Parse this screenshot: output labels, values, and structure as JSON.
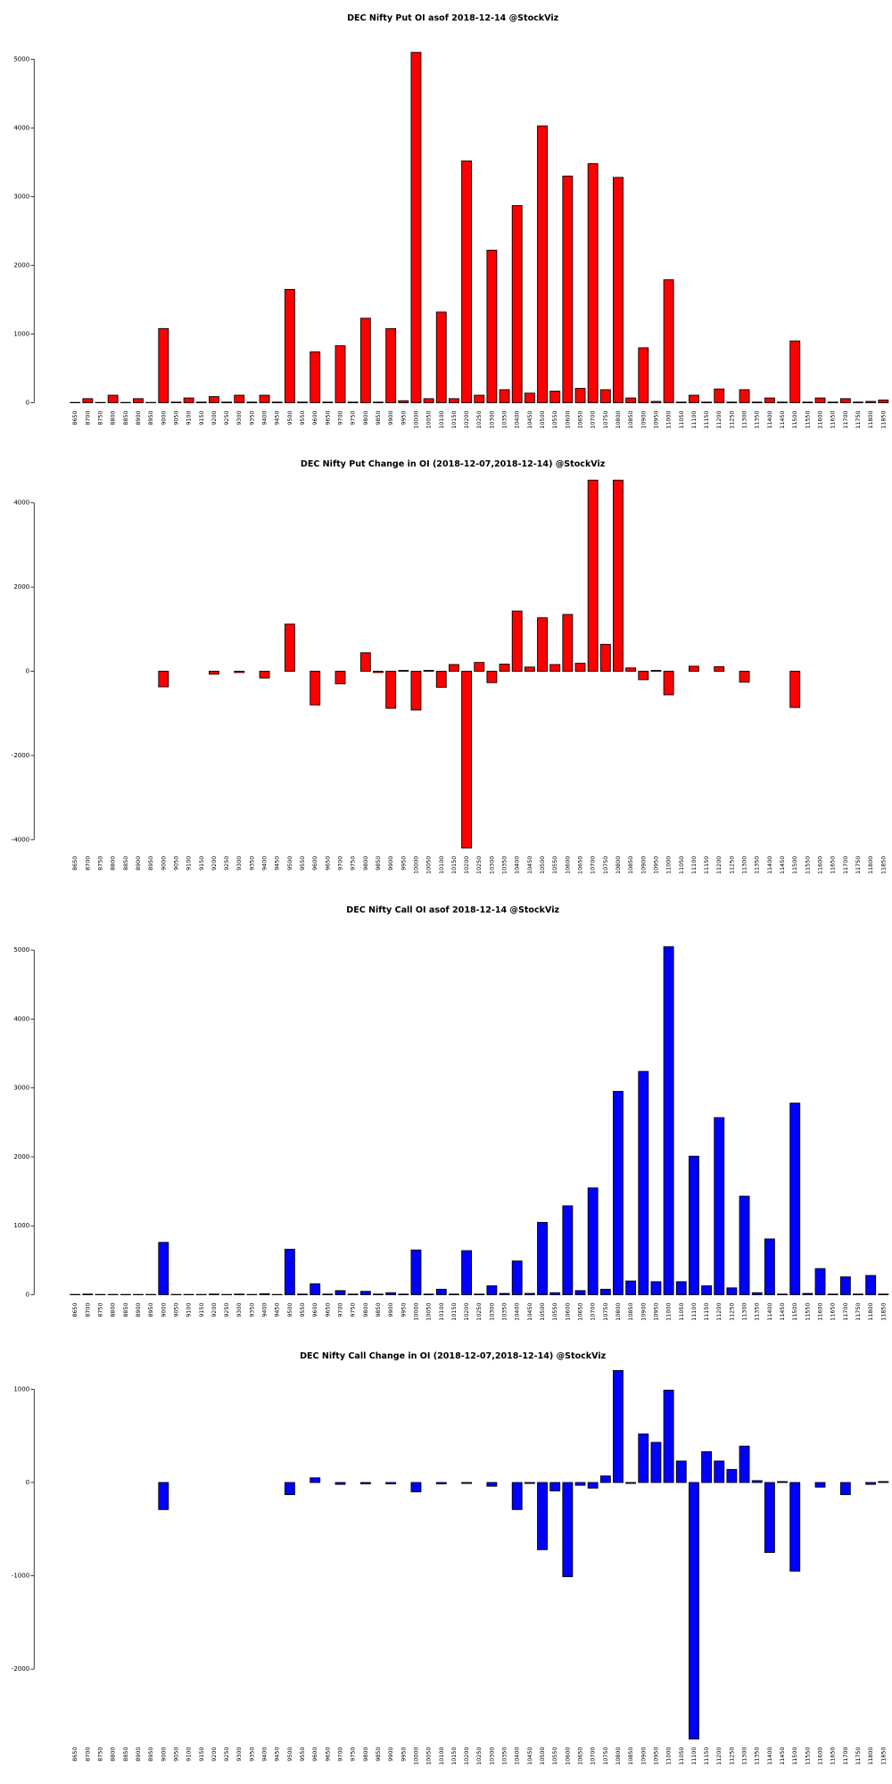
{
  "chart_data": [
    {
      "type": "bar",
      "title": "DEC Nifty Put OI asof 2018-12-14 @StockViz",
      "color": "#ff0000",
      "categories": [
        "8650",
        "8700",
        "8750",
        "8800",
        "8850",
        "8900",
        "8950",
        "9000",
        "9050",
        "9100",
        "9150",
        "9200",
        "9250",
        "9300",
        "9350",
        "9400",
        "9450",
        "9500",
        "9550",
        "9600",
        "9650",
        "9700",
        "9750",
        "9800",
        "9850",
        "9900",
        "9950",
        "10000",
        "10050",
        "10100",
        "10150",
        "10200",
        "10250",
        "10300",
        "10350",
        "10400",
        "10450",
        "10500",
        "10550",
        "10600",
        "10650",
        "10700",
        "10750",
        "10800",
        "10850",
        "10900",
        "10950",
        "11000",
        "11050",
        "11100",
        "11150",
        "11200",
        "11250",
        "11300",
        "11350",
        "11400",
        "11450",
        "11500",
        "11550",
        "11600",
        "11650",
        "11700",
        "11750",
        "11800",
        "11850"
      ],
      "values": [
        5,
        60,
        5,
        110,
        5,
        60,
        5,
        1080,
        10,
        70,
        10,
        90,
        10,
        110,
        10,
        110,
        10,
        1650,
        10,
        740,
        10,
        830,
        10,
        1230,
        10,
        1080,
        30,
        5100,
        60,
        1320,
        60,
        3520,
        110,
        2220,
        190,
        2870,
        140,
        4030,
        170,
        3300,
        210,
        3480,
        190,
        3280,
        70,
        800,
        20,
        1790,
        10,
        110,
        10,
        200,
        10,
        190,
        10,
        70,
        10,
        900,
        10,
        70,
        10,
        60,
        10,
        20,
        40
      ],
      "ylim": [
        0,
        5150
      ],
      "yticks": [
        0,
        1000,
        2000,
        3000,
        4000,
        5000
      ]
    },
    {
      "type": "bar",
      "title": "DEC Nifty Put Change in OI (2018-12-07,2018-12-14) @StockViz",
      "color": "#ff0000",
      "categories": [
        "8650",
        "8700",
        "8750",
        "8800",
        "8850",
        "8900",
        "8950",
        "9000",
        "9050",
        "9100",
        "9150",
        "9200",
        "9250",
        "9300",
        "9350",
        "9400",
        "9450",
        "9500",
        "9550",
        "9600",
        "9650",
        "9700",
        "9750",
        "9800",
        "9850",
        "9900",
        "9950",
        "10000",
        "10050",
        "10100",
        "10150",
        "10200",
        "10250",
        "10300",
        "10350",
        "10400",
        "10450",
        "10500",
        "10550",
        "10600",
        "10650",
        "10700",
        "10750",
        "10800",
        "10850",
        "10900",
        "10950",
        "11000",
        "11050",
        "11100",
        "11150",
        "11200",
        "11250",
        "11300",
        "11350",
        "11400",
        "11450",
        "11500",
        "11550",
        "11600",
        "11650",
        "11700",
        "11750",
        "11800",
        "11850"
      ],
      "values": [
        0,
        0,
        0,
        0,
        0,
        0,
        0,
        -370,
        0,
        0,
        0,
        -70,
        0,
        -30,
        0,
        -160,
        0,
        1120,
        0,
        -800,
        0,
        -300,
        0,
        440,
        -30,
        -880,
        20,
        -920,
        20,
        -380,
        160,
        -4200,
        210,
        -270,
        170,
        1430,
        100,
        1270,
        160,
        1350,
        190,
        4540,
        640,
        4540,
        80,
        -200,
        20,
        -560,
        0,
        120,
        0,
        110,
        0,
        -260,
        0,
        0,
        0,
        -860,
        0,
        0,
        0,
        0,
        0,
        0,
        0
      ],
      "ylim": [
        -4200,
        4540
      ],
      "yticks": [
        -4000,
        -2000,
        0,
        2000,
        4000
      ]
    },
    {
      "type": "bar",
      "title": "DEC Nifty Call OI asof 2018-12-14 @StockViz",
      "color": "#0000ff",
      "categories": [
        "8650",
        "8700",
        "8750",
        "8800",
        "8850",
        "8900",
        "8950",
        "9000",
        "9050",
        "9100",
        "9150",
        "9200",
        "9250",
        "9300",
        "9350",
        "9400",
        "9450",
        "9500",
        "9550",
        "9600",
        "9650",
        "9700",
        "9750",
        "9800",
        "9850",
        "9900",
        "9950",
        "10000",
        "10050",
        "10100",
        "10150",
        "10200",
        "10250",
        "10300",
        "10350",
        "10400",
        "10450",
        "10500",
        "10550",
        "10600",
        "10650",
        "10700",
        "10750",
        "10800",
        "10850",
        "10900",
        "10950",
        "11000",
        "11050",
        "11100",
        "11150",
        "11200",
        "11250",
        "11300",
        "11350",
        "11400",
        "11450",
        "11500",
        "11550",
        "11600",
        "11650",
        "11700",
        "11750",
        "11800",
        "11850"
      ],
      "values": [
        5,
        10,
        5,
        5,
        5,
        5,
        5,
        760,
        5,
        5,
        5,
        10,
        5,
        10,
        5,
        15,
        5,
        660,
        10,
        160,
        10,
        60,
        10,
        50,
        10,
        30,
        10,
        650,
        10,
        80,
        10,
        640,
        10,
        130,
        20,
        490,
        20,
        1050,
        30,
        1290,
        60,
        1550,
        80,
        2950,
        200,
        3240,
        190,
        5050,
        190,
        2010,
        130,
        2570,
        100,
        1430,
        30,
        810,
        10,
        2780,
        20,
        380,
        10,
        260,
        10,
        280,
        10
      ],
      "ylim": [
        0,
        5100
      ],
      "yticks": [
        0,
        1000,
        2000,
        3000,
        4000,
        5000
      ]
    },
    {
      "type": "bar",
      "title": "DEC Nifty Call Change in OI (2018-12-07,2018-12-14) @StockViz",
      "color": "#0000ff",
      "categories": [
        "8650",
        "8700",
        "8750",
        "8800",
        "8850",
        "8900",
        "8950",
        "9000",
        "9050",
        "9100",
        "9150",
        "9200",
        "9250",
        "9300",
        "9350",
        "9400",
        "9450",
        "9500",
        "9550",
        "9600",
        "9650",
        "9700",
        "9750",
        "9800",
        "9850",
        "9900",
        "9950",
        "10000",
        "10050",
        "10100",
        "10150",
        "10200",
        "10250",
        "10300",
        "10350",
        "10400",
        "10450",
        "10500",
        "10550",
        "10600",
        "10650",
        "10700",
        "10750",
        "10800",
        "10850",
        "10900",
        "10950",
        "11000",
        "11050",
        "11100",
        "11150",
        "11200",
        "11250",
        "11300",
        "11350",
        "11400",
        "11450",
        "11500",
        "11550",
        "11600",
        "11650",
        "11700",
        "11750",
        "11800",
        "11850"
      ],
      "values": [
        0,
        0,
        0,
        0,
        0,
        0,
        0,
        -290,
        0,
        0,
        0,
        0,
        0,
        0,
        0,
        0,
        0,
        -130,
        0,
        50,
        0,
        -20,
        0,
        -15,
        0,
        -15,
        0,
        -100,
        0,
        -15,
        0,
        -10,
        0,
        -40,
        0,
        -290,
        -10,
        -720,
        -90,
        -1010,
        -30,
        -60,
        70,
        1200,
        -10,
        520,
        430,
        990,
        230,
        -2750,
        330,
        230,
        140,
        390,
        20,
        -750,
        10,
        -950,
        0,
        -50,
        0,
        -130,
        0,
        -20,
        10
      ],
      "ylim": [
        -2750,
        1200
      ],
      "yticks": [
        -2000,
        -1000,
        0,
        1000
      ]
    }
  ]
}
